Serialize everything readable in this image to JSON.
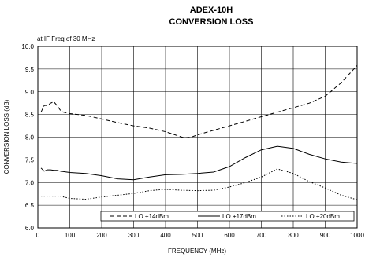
{
  "chart_data": {
    "type": "line",
    "title": "ADEX-10H",
    "subtitle": "CONVERSION LOSS",
    "annotation": "at IF Freq of 30 MHz",
    "xlabel": "FREQUENCY (MHz)",
    "ylabel": "CONVERSION LOSS (dB)",
    "xlim": [
      0,
      1000
    ],
    "ylim": [
      6.0,
      10.0
    ],
    "xticks": [
      "0",
      "100",
      "200",
      "300",
      "400",
      "500",
      "600",
      "700",
      "800",
      "900",
      "1000"
    ],
    "yticks": [
      "6.0",
      "6.5",
      "7.0",
      "7.5",
      "8.0",
      "8.5",
      "9.0",
      "9.5",
      "10.0"
    ],
    "grid": true,
    "legend_position": "bottom",
    "series": [
      {
        "name": "LO +14dBm",
        "dash": "dashed",
        "color": "#000000",
        "x": [
          10,
          20,
          30,
          40,
          50,
          60,
          70,
          80,
          100,
          150,
          200,
          250,
          300,
          350,
          400,
          430,
          460,
          480,
          500,
          550,
          600,
          650,
          700,
          750,
          800,
          850,
          900,
          950,
          1000
        ],
        "y": [
          8.55,
          8.7,
          8.7,
          8.75,
          8.78,
          8.7,
          8.6,
          8.55,
          8.52,
          8.48,
          8.4,
          8.32,
          8.25,
          8.2,
          8.12,
          8.05,
          7.98,
          8.0,
          8.05,
          8.15,
          8.25,
          8.35,
          8.45,
          8.55,
          8.65,
          8.75,
          8.9,
          9.2,
          9.58
        ]
      },
      {
        "name": "LO +17dBm",
        "dash": "solid",
        "color": "#000000",
        "x": [
          10,
          20,
          30,
          40,
          50,
          60,
          70,
          80,
          100,
          150,
          200,
          250,
          300,
          350,
          400,
          450,
          500,
          550,
          600,
          650,
          700,
          750,
          800,
          850,
          900,
          950,
          1000
        ],
        "y": [
          7.32,
          7.25,
          7.28,
          7.28,
          7.27,
          7.27,
          7.25,
          7.24,
          7.22,
          7.2,
          7.15,
          7.08,
          7.06,
          7.12,
          7.17,
          7.18,
          7.2,
          7.23,
          7.35,
          7.55,
          7.72,
          7.8,
          7.75,
          7.62,
          7.52,
          7.45,
          7.42
        ]
      },
      {
        "name": "LO +20dBm",
        "dash": "dotted",
        "color": "#000000",
        "x": [
          10,
          30,
          50,
          70,
          100,
          150,
          200,
          250,
          300,
          350,
          400,
          450,
          500,
          550,
          600,
          650,
          700,
          750,
          800,
          850,
          900,
          950,
          1000
        ],
        "y": [
          6.7,
          6.7,
          6.7,
          6.7,
          6.65,
          6.63,
          6.68,
          6.72,
          6.76,
          6.82,
          6.85,
          6.83,
          6.82,
          6.83,
          6.9,
          7.0,
          7.12,
          7.3,
          7.2,
          7.02,
          6.88,
          6.72,
          6.62
        ]
      }
    ]
  }
}
